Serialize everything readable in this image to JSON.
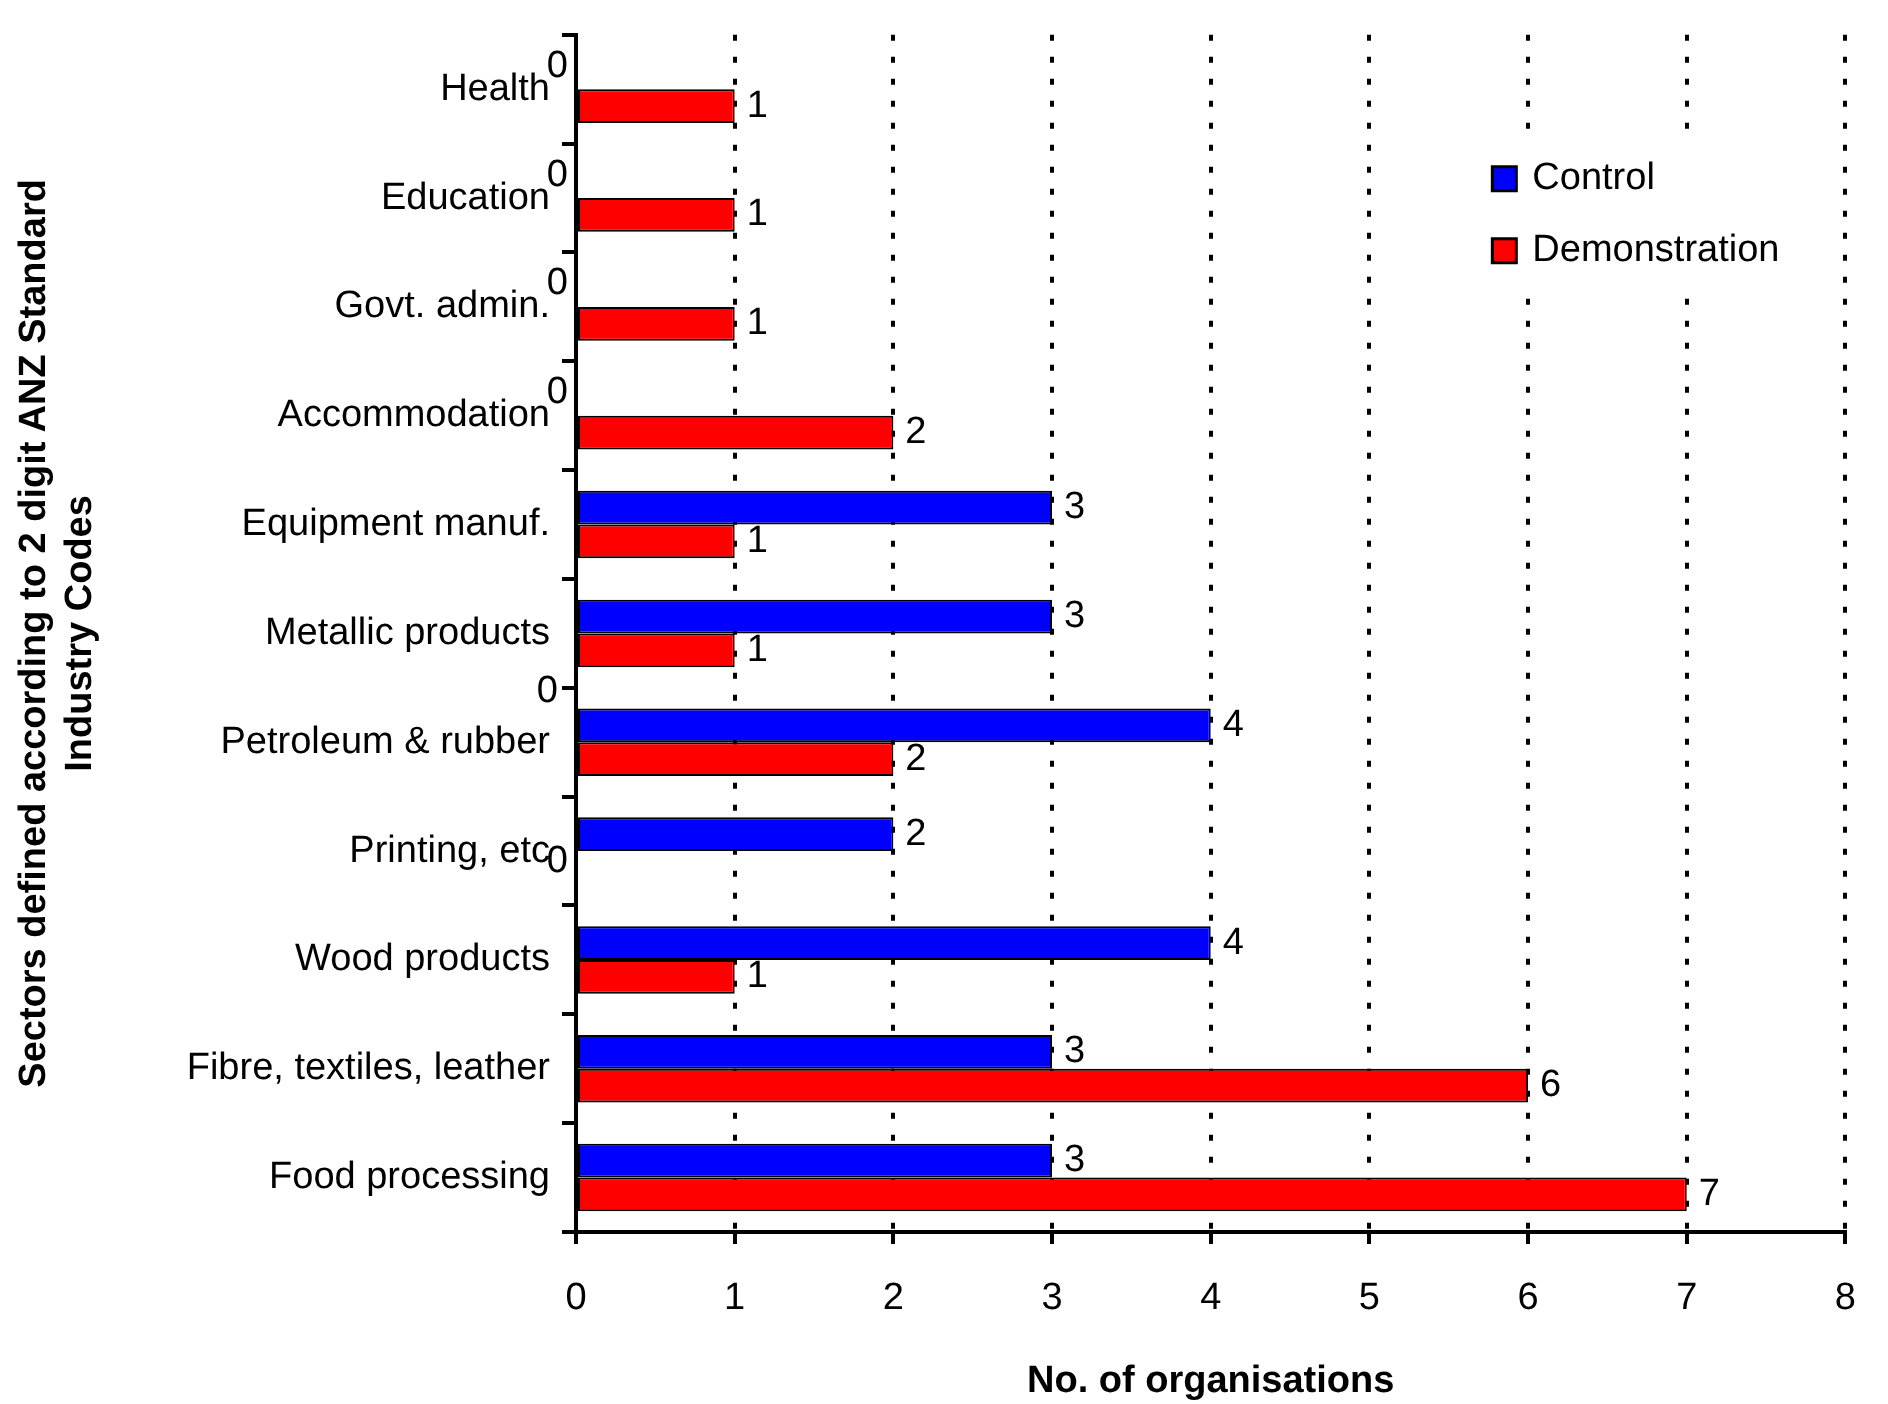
{
  "chart_data": {
    "type": "bar",
    "orientation": "horizontal",
    "xlabel": "No. of organisations",
    "ylabel": "Sectors defined according to 2 digit ANZ Standard Industry Codes",
    "categories": [
      "Health",
      "Education",
      "Govt. admin.",
      "Accommodation",
      "Equipment manuf.",
      "Metallic products",
      "Petroleum & rubber",
      "Printing, etc",
      "Wood products",
      "Fibre, textiles, leather",
      "Food processing"
    ],
    "series": [
      {
        "name": "Control",
        "color": "#0000ff",
        "values": [
          0,
          0,
          0,
          0,
          3,
          3,
          4,
          2,
          4,
          3,
          3
        ]
      },
      {
        "name": "Demonstration",
        "color": "#ff0000",
        "values": [
          1,
          1,
          1,
          2,
          1,
          1,
          2,
          0,
          1,
          6,
          7
        ]
      }
    ],
    "xlim": [
      0,
      8
    ],
    "xticks": [
      0,
      1,
      2,
      3,
      4,
      5,
      6,
      7,
      8
    ],
    "grid": "x",
    "legend": "top right",
    "data_labels": true,
    "annotations": [
      {
        "text": "0",
        "x": 0,
        "y": "Petroleum & rubber"
      }
    ]
  }
}
